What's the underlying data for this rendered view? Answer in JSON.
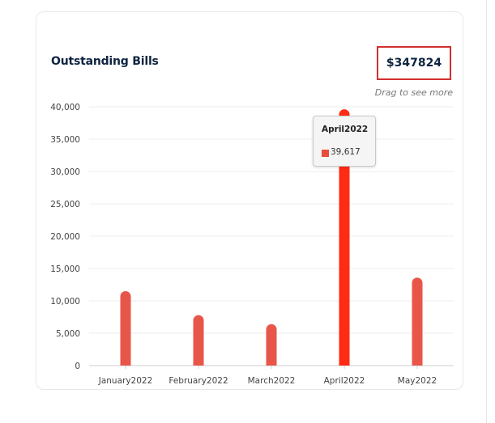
{
  "card": {
    "title": "Outstanding Bills",
    "total": "$347824",
    "drag_hint": "Drag to see more"
  },
  "tooltip": {
    "title": "April2022",
    "value": "39,617"
  },
  "colors": {
    "bar": "#e8564a",
    "bar_active": "#ff2b14",
    "highlight_border": "#d32f2f",
    "title_text": "#0e2440"
  },
  "chart_data": {
    "type": "bar",
    "title": "Outstanding Bills",
    "categories": [
      "January2022",
      "February2022",
      "March2022",
      "April2022",
      "May2022"
    ],
    "values": [
      11500,
      7800,
      6400,
      39617,
      13600
    ],
    "ylim": [
      0,
      40000
    ],
    "yticks": [
      0,
      5000,
      10000,
      15000,
      20000,
      25000,
      30000,
      35000,
      40000
    ],
    "ytick_labels": [
      "0",
      "5,000",
      "10,000",
      "15,000",
      "20,000",
      "25,000",
      "30,000",
      "35,000",
      "40,000"
    ],
    "xlabel": "",
    "ylabel": "",
    "grid": true,
    "highlighted_category": "April2022"
  }
}
